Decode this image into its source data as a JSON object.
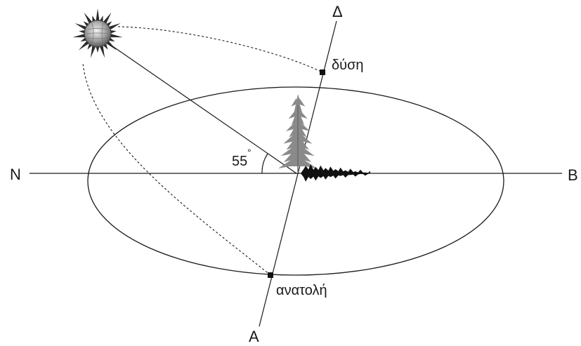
{
  "diagram": {
    "labels": {
      "north": "Ν",
      "south": "Β",
      "west": "Δ",
      "east": "Α",
      "sunset": "δύση",
      "sunrise": "ανατολή",
      "angle_value": "55",
      "angle_unit": "°"
    },
    "colors": {
      "line": "#1a1a1a",
      "tree_standing": "#8a8a8a",
      "tree_shadow": "#111111",
      "sun_rays": "#2b2b2b",
      "sun_disk": "#b5b5b5"
    }
  }
}
